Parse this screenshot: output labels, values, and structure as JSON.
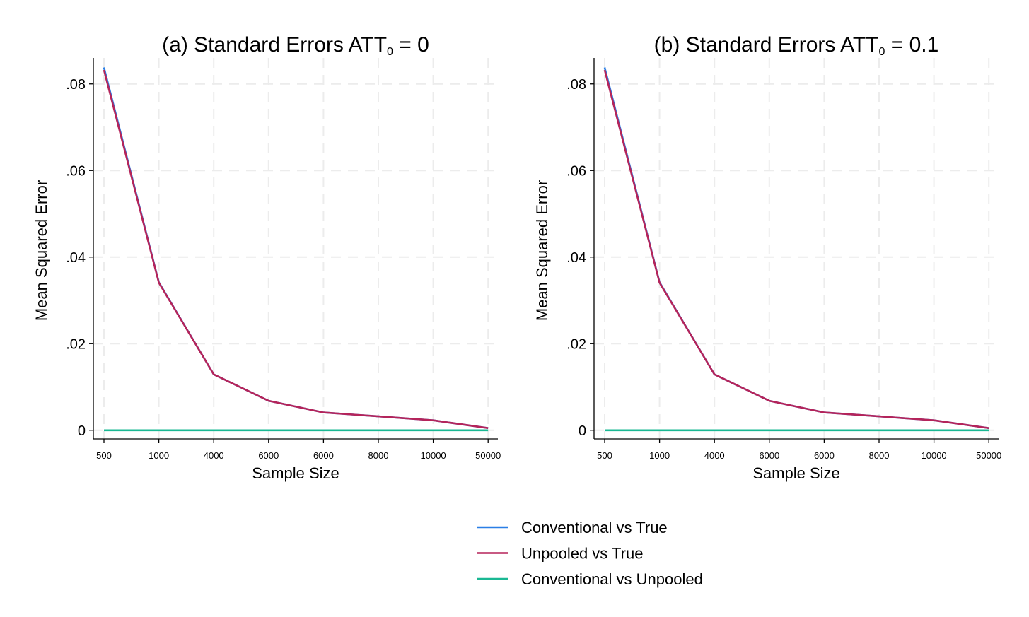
{
  "chart_data": [
    {
      "type": "line",
      "title_prefix": "(a) Standard Errors ATT",
      "title_subscript": "0",
      "title_suffix": " = 0",
      "xlabel": "Sample Size",
      "ylabel": "Mean Squared Error",
      "categories": [
        "500",
        "1000",
        "4000",
        "6000",
        "6000",
        "8000",
        "10000",
        "50000"
      ],
      "y_ticks": [
        0,
        0.02,
        0.04,
        0.06,
        0.08
      ],
      "y_tick_labels": [
        "0",
        ".02",
        ".04",
        ".06",
        ".08"
      ],
      "ylim": [
        -0.002,
        0.086
      ],
      "grid": true,
      "series": [
        {
          "name": "Conventional vs True",
          "color": "#2a7fe6",
          "values": [
            0.0838,
            0.0342,
            0.0129,
            0.0068,
            0.0041,
            0.0032,
            0.0023,
            0.0005
          ]
        },
        {
          "name": "Unpooled vs True",
          "color": "#b5245a",
          "values": [
            0.0832,
            0.0341,
            0.0129,
            0.0068,
            0.0041,
            0.0032,
            0.0023,
            0.0005
          ]
        },
        {
          "name": "Conventional vs Unpooled",
          "color": "#1ab893",
          "values": [
            0.0,
            0.0,
            0.0,
            0.0,
            0.0,
            0.0,
            0.0,
            0.0
          ]
        }
      ]
    },
    {
      "type": "line",
      "title_prefix": "(b) Standard Errors ATT",
      "title_subscript": "0",
      "title_suffix": " = 0.1",
      "xlabel": "Sample Size",
      "ylabel": "Mean Squared Error",
      "categories": [
        "500",
        "1000",
        "4000",
        "6000",
        "6000",
        "8000",
        "10000",
        "50000"
      ],
      "y_ticks": [
        0,
        0.02,
        0.04,
        0.06,
        0.08
      ],
      "y_tick_labels": [
        "0",
        ".02",
        ".04",
        ".06",
        ".08"
      ],
      "ylim": [
        -0.002,
        0.086
      ],
      "grid": true,
      "series": [
        {
          "name": "Conventional vs True",
          "color": "#2a7fe6",
          "values": [
            0.0838,
            0.0342,
            0.0129,
            0.0068,
            0.0041,
            0.0032,
            0.0023,
            0.0005
          ]
        },
        {
          "name": "Unpooled vs True",
          "color": "#b5245a",
          "values": [
            0.0832,
            0.0341,
            0.0129,
            0.0068,
            0.0041,
            0.0032,
            0.0023,
            0.0005
          ]
        },
        {
          "name": "Conventional vs Unpooled",
          "color": "#1ab893",
          "values": [
            0.0,
            0.0,
            0.0,
            0.0,
            0.0,
            0.0,
            0.0,
            0.0
          ]
        }
      ]
    }
  ],
  "legend": {
    "placement": "bottom-center",
    "items": [
      {
        "label": "Conventional vs True",
        "color": "#2a7fe6"
      },
      {
        "label": "Unpooled vs True",
        "color": "#b5245a"
      },
      {
        "label": "Conventional vs Unpooled",
        "color": "#1ab893"
      }
    ]
  }
}
